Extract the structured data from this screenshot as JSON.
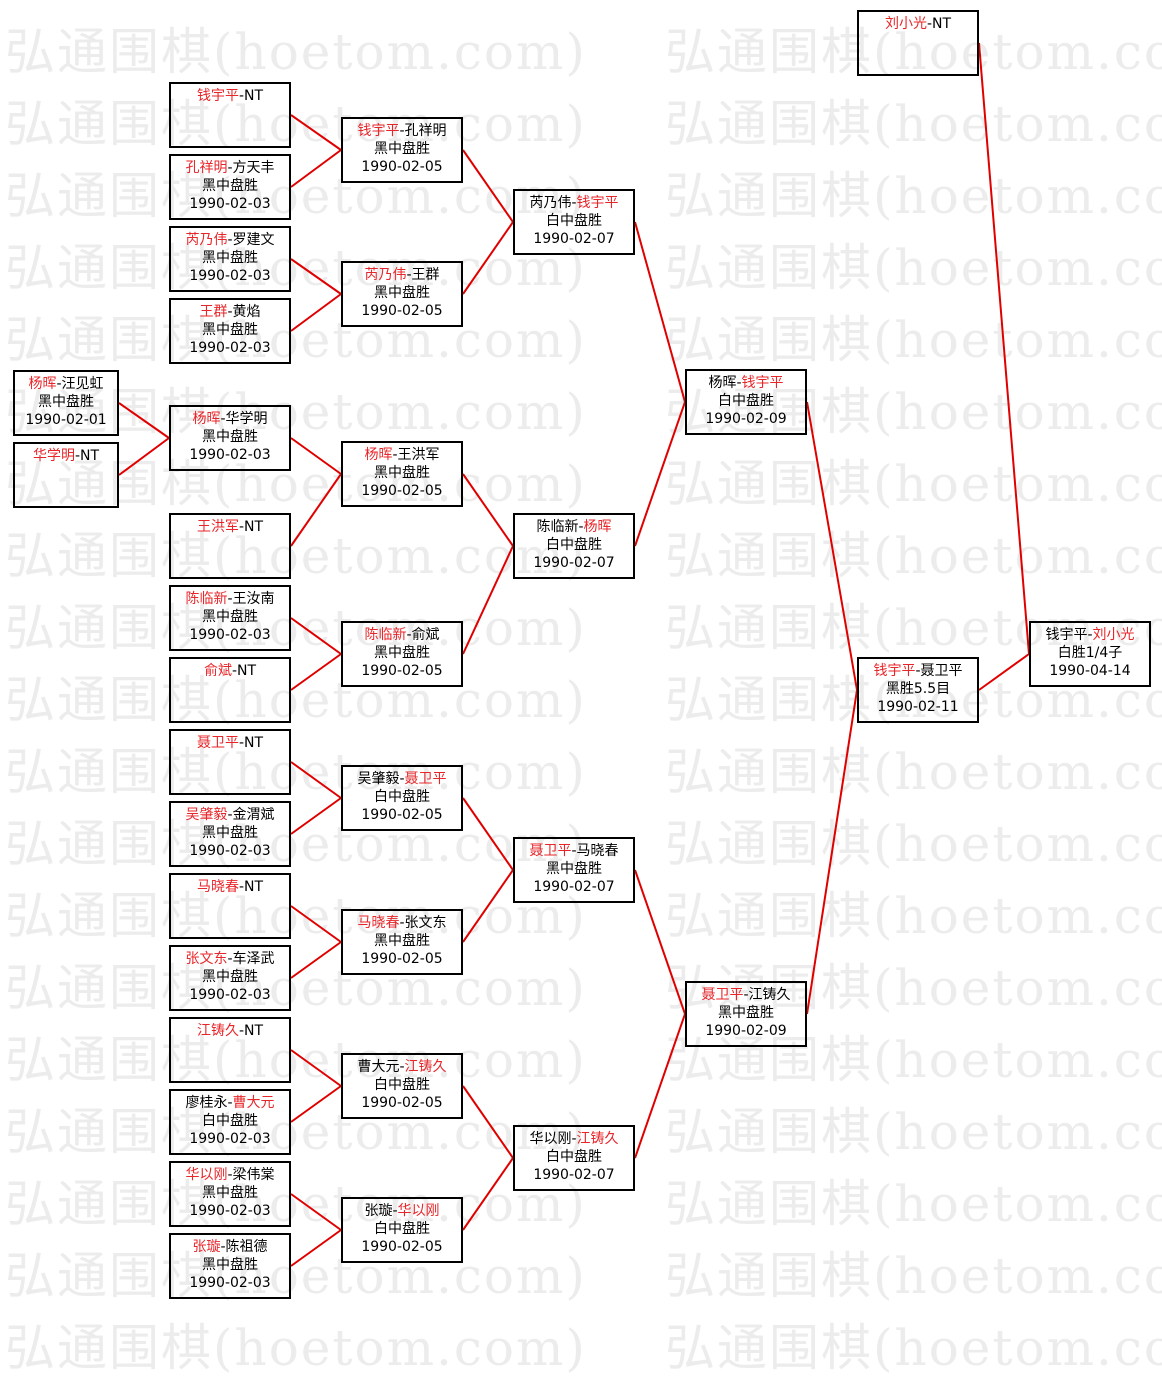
{
  "watermark": "弘通围棋(hoetom.com)",
  "colors": {
    "winner": "#e8262a",
    "line": "#e00000",
    "border": "#000000",
    "watermark": "#ececec"
  },
  "games": [
    {
      "id": "a0",
      "p1": "杨晖",
      "p2": "汪见虹",
      "winner": 1,
      "result": "黑中盘胜",
      "date": "1990-02-01"
    },
    {
      "id": "a1",
      "p1": "华学明",
      "p2": "NT",
      "winner": 1,
      "result": "",
      "date": ""
    },
    {
      "id": "b0",
      "p1": "钱宇平",
      "p2": "NT",
      "winner": 1,
      "result": "",
      "date": ""
    },
    {
      "id": "b1",
      "p1": "孔祥明",
      "p2": "方天丰",
      "winner": 1,
      "result": "黑中盘胜",
      "date": "1990-02-03"
    },
    {
      "id": "b2",
      "p1": "芮乃伟",
      "p2": "罗建文",
      "winner": 1,
      "result": "黑中盘胜",
      "date": "1990-02-03"
    },
    {
      "id": "b3",
      "p1": "王群",
      "p2": "黄焰",
      "winner": 1,
      "result": "黑中盘胜",
      "date": "1990-02-03"
    },
    {
      "id": "b4",
      "p1": "杨晖",
      "p2": "华学明",
      "winner": 1,
      "result": "黑中盘胜",
      "date": "1990-02-03"
    },
    {
      "id": "b5",
      "p1": "王洪军",
      "p2": "NT",
      "winner": 1,
      "result": "",
      "date": ""
    },
    {
      "id": "b6",
      "p1": "陈临新",
      "p2": "王汝南",
      "winner": 1,
      "result": "黑中盘胜",
      "date": "1990-02-03"
    },
    {
      "id": "b7",
      "p1": "俞斌",
      "p2": "NT",
      "winner": 1,
      "result": "",
      "date": ""
    },
    {
      "id": "b8",
      "p1": "聂卫平",
      "p2": "NT",
      "winner": 1,
      "result": "",
      "date": ""
    },
    {
      "id": "b9",
      "p1": "吴肇毅",
      "p2": "金渭斌",
      "winner": 1,
      "result": "黑中盘胜",
      "date": "1990-02-03"
    },
    {
      "id": "b10",
      "p1": "马晓春",
      "p2": "NT",
      "winner": 1,
      "result": "",
      "date": ""
    },
    {
      "id": "b11",
      "p1": "张文东",
      "p2": "车泽武",
      "winner": 1,
      "result": "黑中盘胜",
      "date": "1990-02-03"
    },
    {
      "id": "b12",
      "p1": "江铸久",
      "p2": "NT",
      "winner": 1,
      "result": "",
      "date": ""
    },
    {
      "id": "b13",
      "p1": "廖桂永",
      "p2": "曹大元",
      "winner": 2,
      "result": "白中盘胜",
      "date": "1990-02-03"
    },
    {
      "id": "b14",
      "p1": "华以刚",
      "p2": "梁伟棠",
      "winner": 1,
      "result": "黑中盘胜",
      "date": "1990-02-03"
    },
    {
      "id": "b15",
      "p1": "张璇",
      "p2": "陈祖德",
      "winner": 1,
      "result": "黑中盘胜",
      "date": "1990-02-03"
    },
    {
      "id": "c0",
      "p1": "钱宇平",
      "p2": "孔祥明",
      "winner": 1,
      "result": "黑中盘胜",
      "date": "1990-02-05"
    },
    {
      "id": "c1",
      "p1": "芮乃伟",
      "p2": "王群",
      "winner": 1,
      "result": "黑中盘胜",
      "date": "1990-02-05"
    },
    {
      "id": "c2",
      "p1": "杨晖",
      "p2": "王洪军",
      "winner": 1,
      "result": "黑中盘胜",
      "date": "1990-02-05"
    },
    {
      "id": "c3",
      "p1": "陈临新",
      "p2": "俞斌",
      "winner": 1,
      "result": "黑中盘胜",
      "date": "1990-02-05"
    },
    {
      "id": "c4",
      "p1": "吴肇毅",
      "p2": "聂卫平",
      "winner": 2,
      "result": "白中盘胜",
      "date": "1990-02-05"
    },
    {
      "id": "c5",
      "p1": "马晓春",
      "p2": "张文东",
      "winner": 1,
      "result": "黑中盘胜",
      "date": "1990-02-05"
    },
    {
      "id": "c6",
      "p1": "曹大元",
      "p2": "江铸久",
      "winner": 2,
      "result": "白中盘胜",
      "date": "1990-02-05"
    },
    {
      "id": "c7",
      "p1": "张璇",
      "p2": "华以刚",
      "winner": 2,
      "result": "白中盘胜",
      "date": "1990-02-05"
    },
    {
      "id": "d0",
      "p1": "芮乃伟",
      "p2": "钱宇平",
      "winner": 2,
      "result": "白中盘胜",
      "date": "1990-02-07"
    },
    {
      "id": "d1",
      "p1": "陈临新",
      "p2": "杨晖",
      "winner": 2,
      "result": "白中盘胜",
      "date": "1990-02-07"
    },
    {
      "id": "d2",
      "p1": "聂卫平",
      "p2": "马晓春",
      "winner": 1,
      "result": "黑中盘胜",
      "date": "1990-02-07"
    },
    {
      "id": "d3",
      "p1": "华以刚",
      "p2": "江铸久",
      "winner": 2,
      "result": "白中盘胜",
      "date": "1990-02-07"
    },
    {
      "id": "e0",
      "p1": "杨晖",
      "p2": "钱宇平",
      "winner": 2,
      "result": "白中盘胜",
      "date": "1990-02-09"
    },
    {
      "id": "e1",
      "p1": "聂卫平",
      "p2": "江铸久",
      "winner": 1,
      "result": "黑中盘胜",
      "date": "1990-02-09"
    },
    {
      "id": "f0",
      "p1": "钱宇平",
      "p2": "聂卫平",
      "winner": 1,
      "result": "黑胜5.5目",
      "date": "1990-02-11"
    },
    {
      "id": "t0",
      "p1": "刘小光",
      "p2": "NT",
      "winner": 1,
      "result": "",
      "date": ""
    },
    {
      "id": "g0",
      "p1": "钱宇平",
      "p2": "刘小光",
      "winner": 2,
      "result": "白胜1/4子",
      "date": "1990-04-14"
    }
  ],
  "links": [
    [
      "a0",
      "b4"
    ],
    [
      "a1",
      "b4"
    ],
    [
      "b0",
      "c0"
    ],
    [
      "b1",
      "c0"
    ],
    [
      "b2",
      "c1"
    ],
    [
      "b3",
      "c1"
    ],
    [
      "b4",
      "c2"
    ],
    [
      "b5",
      "c2"
    ],
    [
      "b6",
      "c3"
    ],
    [
      "b7",
      "c3"
    ],
    [
      "b8",
      "c4"
    ],
    [
      "b9",
      "c4"
    ],
    [
      "b10",
      "c5"
    ],
    [
      "b11",
      "c5"
    ],
    [
      "b12",
      "c6"
    ],
    [
      "b13",
      "c6"
    ],
    [
      "b14",
      "c7"
    ],
    [
      "b15",
      "c7"
    ],
    [
      "c0",
      "d0"
    ],
    [
      "c1",
      "d0"
    ],
    [
      "c2",
      "d1"
    ],
    [
      "c3",
      "d1"
    ],
    [
      "c4",
      "d2"
    ],
    [
      "c5",
      "d2"
    ],
    [
      "c6",
      "d3"
    ],
    [
      "c7",
      "d3"
    ],
    [
      "d0",
      "e0"
    ],
    [
      "d1",
      "e0"
    ],
    [
      "d2",
      "e1"
    ],
    [
      "d3",
      "e1"
    ],
    [
      "e0",
      "f0"
    ],
    [
      "e1",
      "f0"
    ],
    [
      "f0",
      "g0"
    ],
    [
      "t0",
      "g0"
    ]
  ]
}
